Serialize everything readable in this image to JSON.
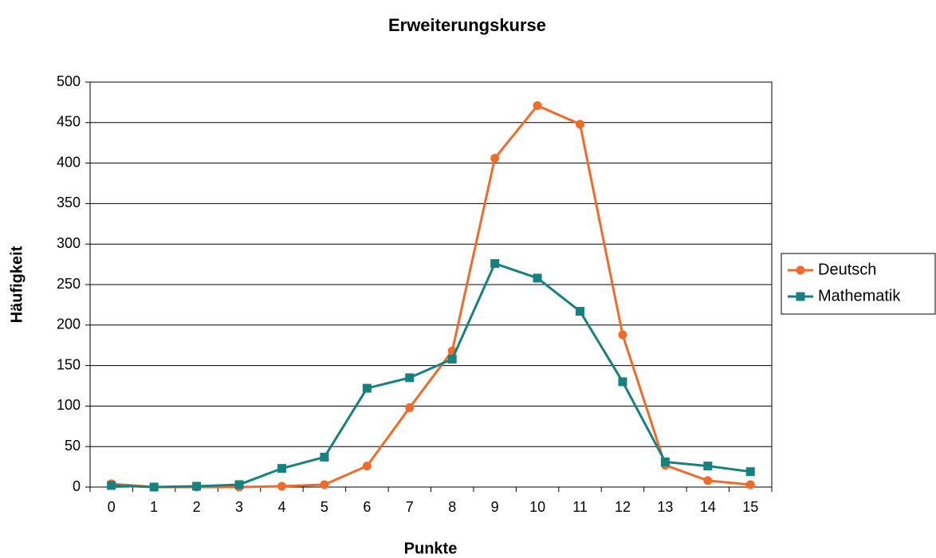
{
  "chart_data": {
    "type": "line",
    "title": "Erweiterungskurse",
    "x_label": "Punkte",
    "y_label": "Häufigkeit",
    "categories": [
      "0",
      "1",
      "2",
      "3",
      "4",
      "5",
      "6",
      "7",
      "8",
      "9",
      "10",
      "11",
      "12",
      "13",
      "14",
      "15"
    ],
    "series": [
      {
        "name": "Deutsch",
        "color": "#ee6b2b",
        "marker": "circle",
        "values": [
          4,
          0,
          0,
          0,
          1,
          3,
          26,
          98,
          168,
          406,
          471,
          448,
          188,
          27,
          8,
          3
        ]
      },
      {
        "name": "Mathematik",
        "color": "#198080",
        "marker": "square",
        "values": [
          2,
          0,
          1,
          3,
          23,
          37,
          122,
          135,
          158,
          276,
          258,
          217,
          130,
          31,
          26,
          19
        ]
      }
    ],
    "ylim": [
      0,
      500
    ],
    "yticks": [
      0,
      50,
      100,
      150,
      200,
      250,
      300,
      350,
      400,
      450,
      500
    ],
    "grid": true,
    "legend": "right"
  }
}
